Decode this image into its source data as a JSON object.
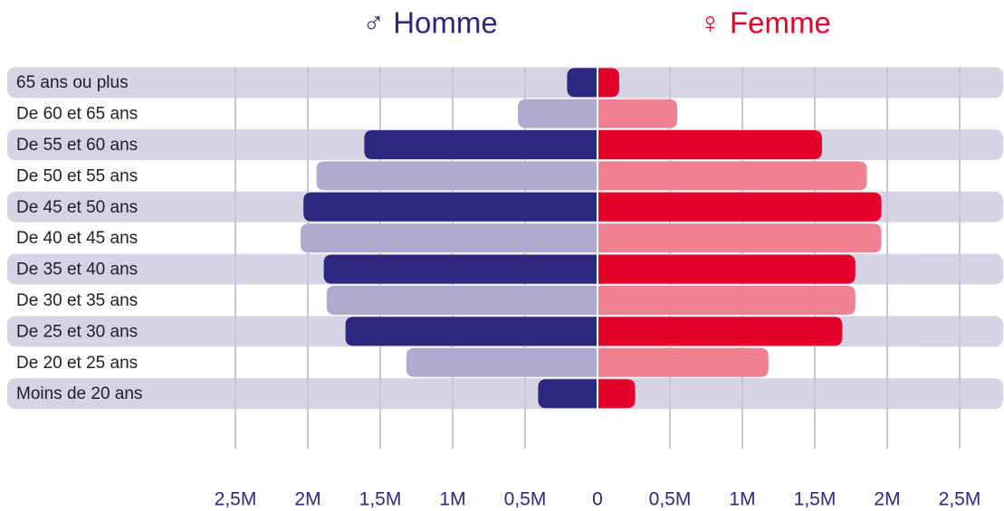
{
  "chart_data": {
    "type": "pyramid",
    "categories": [
      "65 ans ou plus",
      "De 60 et 65 ans",
      "De 55 et 60 ans",
      "De 50 et 55 ans",
      "De 45 et 50 ans",
      "De 40 et 45 ans",
      "De 35 et 40 ans",
      "De 30 et 35 ans",
      "De 25 et 30 ans",
      "De 20 et 25 ans",
      "Moins de 20 ans"
    ],
    "series": [
      {
        "name": "♂ Homme",
        "side": "left",
        "colors": [
          "#2e2780",
          "#aeabcf"
        ],
        "values": [
          0.21,
          0.55,
          1.61,
          1.94,
          2.03,
          2.05,
          1.89,
          1.87,
          1.74,
          1.32,
          0.41
        ]
      },
      {
        "name": "♀ Femme",
        "side": "right",
        "colors": [
          "#e4002b",
          "#f08191"
        ],
        "values": [
          0.15,
          0.55,
          1.55,
          1.86,
          1.96,
          1.96,
          1.78,
          1.78,
          1.69,
          1.18,
          0.26
        ]
      }
    ],
    "xlim": [
      0,
      2.5
    ],
    "xticks_left": [
      {
        "value": 2.5,
        "label": "2,5M"
      },
      {
        "value": 2,
        "label": "2M"
      },
      {
        "value": 1.5,
        "label": "1,5M"
      },
      {
        "value": 1,
        "label": "1M"
      },
      {
        "value": 0.5,
        "label": "0,5M"
      }
    ],
    "xticks": [
      0,
      {
        "value": 0.5,
        "label": "0,5M"
      },
      {
        "value": 1,
        "label": "1M"
      },
      {
        "value": 1.5,
        "label": "1,5M"
      },
      {
        "value": 2,
        "label": "2M"
      },
      {
        "value": 2.5,
        "label": "2,5M"
      }
    ],
    "grid": true
  }
}
